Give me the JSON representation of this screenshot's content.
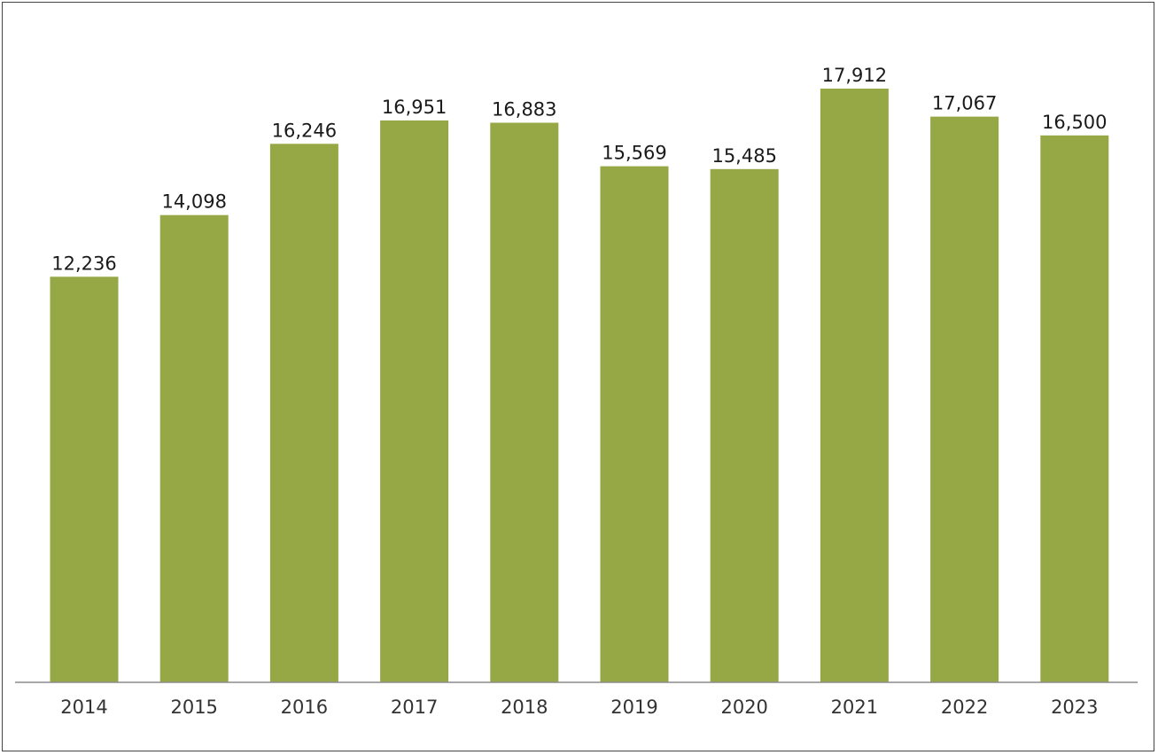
{
  "chart_data": {
    "type": "bar",
    "categories": [
      "2014",
      "2015",
      "2016",
      "2017",
      "2018",
      "2019",
      "2020",
      "2021",
      "2022",
      "2023"
    ],
    "values": [
      12236,
      14098,
      16246,
      16951,
      16883,
      15569,
      15485,
      17912,
      17067,
      16500
    ],
    "value_labels": [
      "12,236",
      "14,098",
      "16,246",
      "16,951",
      "16,883",
      "15,569",
      "15,485",
      "17,912",
      "17,067",
      "16,500"
    ],
    "title": "",
    "xlabel": "",
    "ylabel": "",
    "ylim": [
      0,
      18000
    ],
    "grid": false,
    "legend": "none",
    "bar_color": "#96a845",
    "axis_color": "#8c8c8c"
  }
}
